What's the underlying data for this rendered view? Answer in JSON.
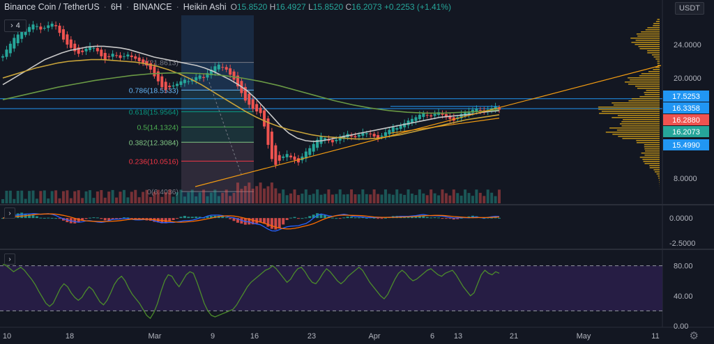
{
  "header": {
    "symbol": "Binance Coin / TetherUS",
    "interval": "6H",
    "exchange": "BINANCE",
    "chart_style": "Heikin Ashi",
    "open_label": "O",
    "open": "15.8520",
    "high_label": "H",
    "high": "16.4927",
    "low_label": "L",
    "low": "15.8520",
    "close_label": "C",
    "close": "16.2073",
    "change": "+0.2253 (+1.41%)",
    "collapsed_count": "4"
  },
  "currency_button": "USDT",
  "pane_toggle_glyph": "›",
  "colors": {
    "background": "#131722",
    "up": "#26a69a",
    "down": "#ef5350",
    "ma_white": "#c9c9c9",
    "ma_yellow": "#c9a43a",
    "ma_green": "#6a9a45",
    "trendline": "#f39c12",
    "horizontal_line": "#2196f3",
    "volume_profile": "#d4a017",
    "rsi": "#4c8c2b",
    "rsi_band": "#2a1e4a"
  },
  "chart_data": [
    {
      "type": "line",
      "name": "price",
      "style": "heikin-ashi candlesticks",
      "y_ticks": [
        "24.0000",
        "20.0000",
        "8.0000"
      ],
      "x_ticks": [
        "10",
        "18",
        "Mar",
        "9",
        "16",
        "23",
        "Apr",
        "6",
        "13",
        "21",
        "May",
        "11"
      ],
      "ylim": [
        5.0,
        27.5
      ],
      "log_scale": false,
      "grid": false,
      "close_series": [
        22.6,
        23.4,
        24.1,
        24.8,
        25.2,
        25.6,
        25.9,
        26.1,
        26.4,
        26.2,
        25.8,
        26.0,
        26.3,
        26.5,
        26.2,
        25.4,
        24.6,
        24.0,
        23.6,
        23.2,
        22.9,
        23.1,
        23.5,
        23.8,
        23.6,
        23.2,
        22.6,
        22.2,
        22.5,
        22.9,
        22.7,
        22.4,
        22.6,
        22.8,
        22.5,
        22.3,
        22.0,
        21.8,
        21.5,
        21.0,
        20.2,
        19.6,
        18.9,
        18.6,
        18.9,
        19.1,
        19.3,
        19.6,
        19.8,
        19.6,
        19.8,
        20.1,
        20.3,
        20.0,
        20.6,
        21.0,
        21.4,
        21.6,
        21.3,
        21.0,
        20.4,
        19.8,
        19.0,
        18.2,
        17.3,
        16.8,
        16.3,
        16.0,
        15.8,
        14.2,
        12.0,
        10.3,
        9.6,
        10.1,
        10.6,
        10.9,
        10.5,
        10.2,
        9.9,
        10.6,
        11.2,
        11.6,
        12.1,
        12.6,
        13.0,
        12.8,
        12.5,
        12.3,
        12.6,
        12.9,
        13.1,
        13.3,
        13.0,
        12.9,
        13.2,
        13.5,
        13.4,
        13.3,
        13.0,
        12.8,
        13.1,
        13.5,
        13.8,
        14.1,
        14.0,
        14.3,
        14.6,
        14.9,
        15.1,
        15.3,
        15.6,
        15.8,
        15.5,
        15.4,
        15.7,
        15.9,
        15.6,
        15.3,
        15.1,
        14.9,
        15.3,
        15.7,
        15.9,
        16.0,
        16.2,
        16.3,
        16.1,
        15.9,
        16.2,
        16.4,
        16.6,
        16.2073
      ],
      "moving_averages": [
        {
          "color": "white",
          "values": [
            19.2,
            19.8,
            20.4,
            21.0,
            21.6,
            22.2,
            22.6,
            23.0,
            23.3,
            23.5,
            23.7,
            23.8,
            23.8,
            23.7,
            23.6,
            23.4,
            23.1,
            22.8,
            22.5,
            22.3,
            22.1,
            21.9,
            21.7,
            21.5,
            21.2,
            20.8,
            20.3,
            19.8,
            19.2,
            18.5,
            17.6,
            16.5,
            15.4,
            14.3,
            13.4,
            12.8,
            12.5,
            12.4,
            12.5,
            12.7,
            12.9,
            13.1,
            13.3,
            13.5,
            13.7,
            13.9,
            14.1,
            14.3,
            14.5,
            14.7,
            14.9,
            15.1,
            15.3,
            15.4,
            15.5,
            15.6,
            15.7,
            15.9,
            16.0,
            16.1
          ]
        },
        {
          "color": "yellow",
          "values": [
            20.0,
            20.4,
            20.8,
            21.2,
            21.5,
            21.8,
            22.0,
            22.1,
            22.2,
            22.2,
            22.1,
            22.0,
            21.9,
            21.7,
            21.4,
            21.0,
            20.5,
            19.9,
            19.2,
            18.4,
            17.6,
            16.8,
            16.0,
            15.3,
            14.7,
            14.2,
            13.8,
            13.5,
            13.2,
            13.0,
            12.9,
            12.8,
            12.7,
            12.7,
            12.8,
            13.0,
            13.2,
            13.5,
            13.8,
            14.1,
            14.4,
            14.7,
            15.0,
            15.2,
            15.4,
            15.6
          ]
        },
        {
          "color": "green",
          "values": [
            17.4,
            17.9,
            18.4,
            18.9,
            19.3,
            19.7,
            20.0,
            20.3,
            20.5,
            20.6,
            20.6,
            20.5,
            20.3,
            20.0,
            19.6,
            19.1,
            18.5,
            17.9,
            17.3,
            16.8,
            16.4,
            16.1,
            15.9,
            15.8,
            15.8,
            15.9,
            16.0,
            16.2
          ]
        }
      ],
      "fibonacci": [
        {
          "level": "0",
          "price": "6.4036"
        },
        {
          "level": "0.236",
          "price": "10.0516"
        },
        {
          "level": "0.382",
          "price": "12.3084"
        },
        {
          "level": "0.5",
          "price": "14.1324"
        },
        {
          "level": "0.618",
          "price": "15.9564"
        },
        {
          "level": "0.786",
          "price": "18.5533"
        },
        {
          "level": "1",
          "price": "21.8613"
        }
      ],
      "horizontal_lines": [
        "17.5253",
        "16.3358"
      ],
      "price_labels": [
        {
          "value": "17.5253",
          "color": "blue"
        },
        {
          "value": "16.3358",
          "color": "blue"
        },
        {
          "value": "16.2880",
          "color": "red"
        },
        {
          "value": "16.2073",
          "color": "green"
        },
        {
          "value": "15.4990",
          "color": "blue"
        }
      ]
    },
    {
      "type": "line",
      "name": "MACD",
      "y_ticks": [
        "0.0000",
        "-2.5000"
      ],
      "ylim": [
        -3.0,
        1.2
      ]
    },
    {
      "type": "line",
      "name": "RSI",
      "y_ticks": [
        "80.00",
        "40.00",
        "0.00"
      ],
      "ylim": [
        0,
        100
      ],
      "bands": [
        20,
        80
      ],
      "values": [
        82,
        80,
        76,
        72,
        75,
        78,
        74,
        68,
        62,
        55,
        46,
        38,
        30,
        26,
        30,
        40,
        50,
        56,
        52,
        44,
        38,
        34,
        38,
        46,
        52,
        48,
        40,
        32,
        28,
        34,
        44,
        55,
        62,
        66,
        60,
        50,
        42,
        36,
        30,
        22,
        14,
        10,
        18,
        30,
        46,
        60,
        68,
        66,
        58,
        52,
        60,
        68,
        72,
        70,
        58,
        44,
        30,
        20,
        14,
        12,
        14,
        16,
        18,
        20,
        22,
        28,
        36,
        44,
        52,
        58,
        62,
        66,
        70,
        74,
        76,
        80,
        76,
        70,
        64,
        58,
        62,
        70,
        76,
        78,
        72,
        64,
        58,
        56,
        62,
        70,
        76,
        72,
        66,
        60,
        56,
        60,
        66,
        70,
        74,
        78,
        74,
        66,
        58,
        52,
        46,
        40,
        36,
        42,
        52,
        62,
        70,
        74,
        70,
        64,
        60,
        62,
        66,
        70,
        74,
        76,
        72,
        68,
        66,
        70,
        72,
        74,
        68,
        60,
        52,
        46,
        40,
        44,
        56,
        68,
        74,
        70,
        68,
        72,
        70
      ]
    }
  ]
}
